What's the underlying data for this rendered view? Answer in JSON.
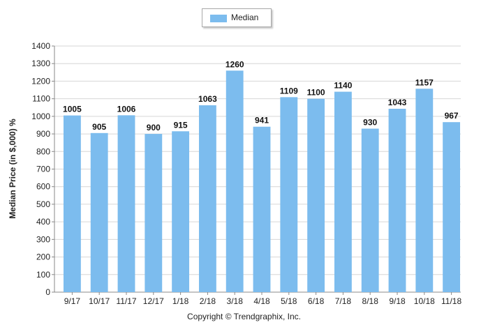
{
  "chart_data": {
    "type": "bar",
    "categories": [
      "9/17",
      "10/17",
      "11/17",
      "12/17",
      "1/18",
      "2/18",
      "3/18",
      "4/18",
      "5/18",
      "6/18",
      "7/18",
      "8/18",
      "9/18",
      "10/18",
      "11/18"
    ],
    "series": [
      {
        "name": "Median",
        "values": [
          1005,
          905,
          1006,
          900,
          915,
          1063,
          1260,
          941,
          1109,
          1100,
          1140,
          930,
          1043,
          1157,
          967
        ]
      }
    ],
    "ylabel": "Median Price (in $,000) %",
    "xlabel": "",
    "ylim": [
      0,
      1400
    ],
    "yticks": [
      0,
      100,
      200,
      300,
      400,
      500,
      600,
      700,
      800,
      900,
      1000,
      1100,
      1200,
      1300,
      1400
    ],
    "grid": true,
    "legend_position": "top-center",
    "bar_color": "#7cbcee",
    "footer": "Copyright © Trendgraphix, Inc."
  }
}
